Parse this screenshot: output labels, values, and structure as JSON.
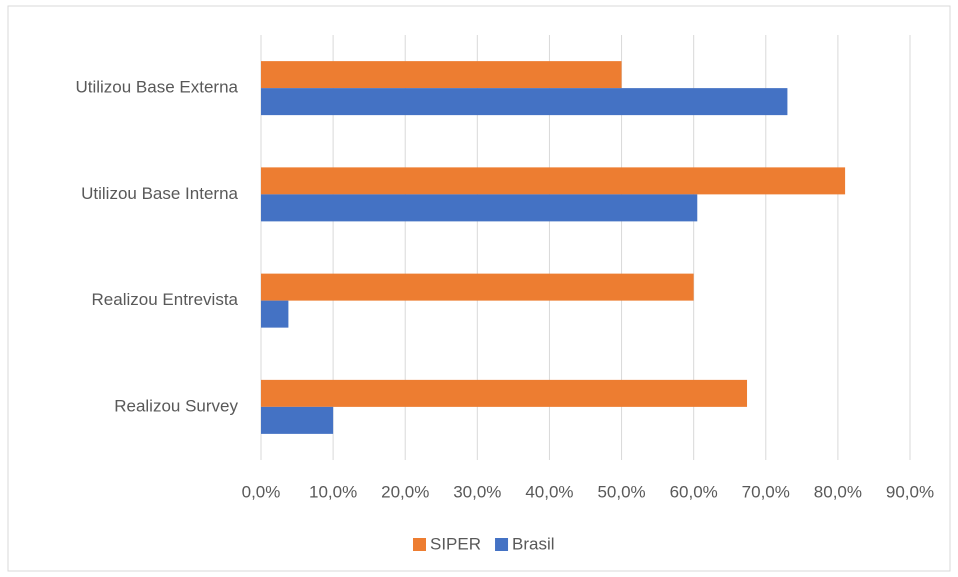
{
  "chart_data": {
    "type": "bar",
    "orientation": "horizontal",
    "categories": [
      "Utilizou Base Externa",
      "Utilizou  Base Interna",
      "Realizou Entrevista",
      "Realizou Survey"
    ],
    "series": [
      {
        "name": "SIPER",
        "color": "#ed7d31",
        "values": [
          50,
          81,
          60,
          67.4
        ]
      },
      {
        "name": "Brasil",
        "color": "#4472c4",
        "values": [
          73,
          60.5,
          3.8,
          10
        ]
      }
    ],
    "xlim": [
      0,
      90
    ],
    "xticks": [
      {
        "value": 0,
        "label": "0,0%"
      },
      {
        "value": 10,
        "label": "10,0%"
      },
      {
        "value": 20,
        "label": "20,0%"
      },
      {
        "value": 30,
        "label": "30,0%"
      },
      {
        "value": 40,
        "label": "40,0%"
      },
      {
        "value": 50,
        "label": "50,0%"
      },
      {
        "value": 60,
        "label": "60,0%"
      },
      {
        "value": 70,
        "label": "70,0%"
      },
      {
        "value": 80,
        "label": "80,0%"
      },
      {
        "value": 90,
        "label": "90,0%"
      }
    ],
    "grid": true,
    "legend": "bottom"
  }
}
